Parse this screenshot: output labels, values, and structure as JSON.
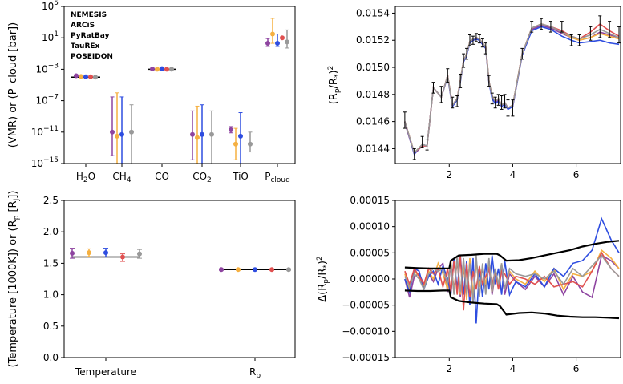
{
  "colors": {
    "NEMESIS": "#8e44a0",
    "ARCiS": "#f5b041",
    "PyRatBay": "#2e4de0",
    "TauREx": "#e05050",
    "POSEIDON": "#999999",
    "noise": "#000000"
  },
  "chart_data": [
    {
      "panel": "top-left",
      "type": "scatter",
      "ylabel": "(VMR) or (P_cloud [bar])",
      "yscale": "log",
      "ylim": [
        1e-15,
        100000.0
      ],
      "yticks": [
        "10^-15",
        "10^-11",
        "10^-7",
        "10^-3",
        "10^1",
        "10^5"
      ],
      "categories": [
        "H2O",
        "CH4",
        "CO",
        "CO2",
        "TiO",
        "Pcloud"
      ],
      "legend": {
        "position": "top-left",
        "entries": [
          "NEMESIS",
          "ARCiS",
          "PyRatBay",
          "TauREx",
          "POSEIDON"
        ]
      },
      "truth": [
        0.0001,
        null,
        0.001,
        null,
        null,
        null
      ],
      "series": [
        {
          "name": "NEMESIS",
          "points": [
            [
              0.00015,
              0.00012,
              0.00018
            ],
            [
              1e-11,
              1e-14,
              3e-07
            ],
            [
              0.0011,
              0.0008,
              0.0015
            ],
            [
              5e-12,
              3e-15,
              5e-09
            ],
            [
              2e-11,
              8e-12,
              5e-11
            ],
            [
              2,
              0.8,
              8
            ]
          ]
        },
        {
          "name": "ARCiS",
          "points": [
            [
              0.00012,
              0.0001,
              0.00015
            ],
            [
              3e-12,
              1e-15,
              1e-06
            ],
            [
              0.001,
              0.0007,
              0.0014
            ],
            [
              2e-12,
              1e-15,
              2e-08
            ],
            [
              3e-13,
              3e-15,
              3e-11
            ],
            [
              30,
              2,
              3000
            ]
          ]
        },
        {
          "name": "PyRatBay",
          "points": [
            [
              0.00011,
              9e-05,
              0.00014
            ],
            [
              5e-12,
              1e-15,
              3e-07
            ],
            [
              0.0012,
              0.0008,
              0.0018
            ],
            [
              5e-12,
              1e-15,
              3e-08
            ],
            [
              3e-12,
              1e-15,
              3e-09
            ],
            [
              2,
              0.8,
              30
            ]
          ]
        },
        {
          "name": "TauREx",
          "points": [
            [
              0.00011,
              9e-05,
              0.00013
            ],
            [
              null,
              null,
              null
            ],
            [
              0.001,
              0.0007,
              0.0014
            ],
            [
              null,
              null,
              null
            ],
            [
              null,
              null,
              null
            ],
            [
              10,
              10,
              10
            ]
          ]
        },
        {
          "name": "POSEIDON",
          "points": [
            [
              0.0001,
              9e-05,
              0.00013
            ],
            [
              1e-11,
              1e-15,
              3e-08
            ],
            [
              0.001,
              0.0008,
              0.0015
            ],
            [
              5e-12,
              1e-15,
              5e-09
            ],
            [
              3e-13,
              3e-14,
              1e-11
            ],
            [
              3,
              0.5,
              100
            ]
          ]
        }
      ]
    },
    {
      "panel": "top-right",
      "type": "line",
      "ylabel": "(R_p/R_*)^2",
      "xlim": [
        0.3,
        7.4
      ],
      "ylim": [
        0.01429,
        0.01545
      ],
      "xticks": [
        2,
        4,
        6
      ],
      "yticks": [
        0.0144,
        0.0146,
        0.0148,
        0.015,
        0.0152,
        0.0154
      ],
      "x": [
        0.6,
        0.9,
        1.15,
        1.3,
        1.5,
        1.75,
        1.95,
        2.1,
        2.25,
        2.35,
        2.45,
        2.55,
        2.65,
        2.75,
        2.85,
        2.95,
        3.05,
        3.15,
        3.25,
        3.35,
        3.45,
        3.55,
        3.65,
        3.75,
        3.85,
        4.0,
        4.3,
        4.6,
        4.9,
        5.2,
        5.55,
        5.85,
        6.1,
        6.45,
        6.75,
        7.05,
        7.35
      ],
      "observed": [
        0.01461,
        0.01436,
        0.01445,
        0.01443,
        0.01485,
        0.0148,
        0.01494,
        0.01474,
        0.01475,
        0.0149,
        0.01505,
        0.0151,
        0.0152,
        0.0152,
        0.01522,
        0.01521,
        0.01518,
        0.01514,
        0.0149,
        0.01477,
        0.01474,
        0.01476,
        0.01474,
        0.01475,
        0.0147,
        0.0147,
        0.0151,
        0.0153,
        0.01532,
        0.0153,
        0.0153,
        0.0152,
        0.0152,
        0.01525,
        0.0153,
        0.01528,
        0.01524
      ],
      "errors": [
        6e-05,
        4e-05,
        4e-05,
        4e-05,
        4e-05,
        6e-05,
        5e-05,
        4e-05,
        4e-05,
        5e-05,
        5e-05,
        4e-05,
        4e-05,
        3e-05,
        3e-05,
        3e-05,
        3e-05,
        4e-05,
        4e-05,
        4e-05,
        4e-05,
        4e-05,
        5e-05,
        5e-05,
        6e-05,
        6e-05,
        4e-05,
        4e-05,
        4e-05,
        4e-05,
        4e-05,
        4e-05,
        4e-05,
        5e-05,
        8e-05,
        6e-05,
        6e-05
      ],
      "series": [
        {
          "name": "NEMESIS",
          "values": [
            0.01459,
            0.01436,
            0.01442,
            0.01442,
            0.01485,
            0.01478,
            0.01494,
            0.01472,
            0.01477,
            0.0149,
            0.01505,
            0.0151,
            0.01518,
            0.0152,
            0.01521,
            0.0152,
            0.01517,
            0.01514,
            0.0149,
            0.01478,
            0.01474,
            0.01476,
            0.01472,
            0.01474,
            0.0147,
            0.01471,
            0.0151,
            0.01528,
            0.01531,
            0.01529,
            0.01525,
            0.01522,
            0.0152,
            0.01522,
            0.01526,
            0.01524,
            0.01522
          ]
        },
        {
          "name": "ARCiS",
          "values": [
            0.0146,
            0.01437,
            0.01443,
            0.01442,
            0.01485,
            0.01478,
            0.01494,
            0.01472,
            0.01477,
            0.0149,
            0.01505,
            0.0151,
            0.01519,
            0.01521,
            0.01522,
            0.01521,
            0.01518,
            0.01515,
            0.0149,
            0.01479,
            0.01475,
            0.01477,
            0.01472,
            0.01474,
            0.0147,
            0.01472,
            0.0151,
            0.01529,
            0.01532,
            0.0153,
            0.01526,
            0.01522,
            0.0152,
            0.01522,
            0.01525,
            0.01523,
            0.01521
          ]
        },
        {
          "name": "PyRatBay",
          "values": [
            0.0146,
            0.01436,
            0.01443,
            0.01442,
            0.01485,
            0.01478,
            0.01493,
            0.01471,
            0.01476,
            0.01489,
            0.01504,
            0.01509,
            0.01518,
            0.0152,
            0.01521,
            0.0152,
            0.01517,
            0.01514,
            0.01489,
            0.01477,
            0.01473,
            0.01475,
            0.01471,
            0.01473,
            0.01469,
            0.01471,
            0.01509,
            0.01527,
            0.0153,
            0.01528,
            0.01523,
            0.0152,
            0.01518,
            0.01519,
            0.0152,
            0.01518,
            0.01517
          ]
        },
        {
          "name": "TauREx",
          "values": [
            0.0146,
            0.01437,
            0.01442,
            0.01442,
            0.01485,
            0.01478,
            0.01494,
            0.01472,
            0.01477,
            0.0149,
            0.01505,
            0.0151,
            0.01519,
            0.01521,
            0.01522,
            0.01521,
            0.01518,
            0.01515,
            0.0149,
            0.01479,
            0.01475,
            0.01477,
            0.01472,
            0.01474,
            0.0147,
            0.01472,
            0.0151,
            0.01529,
            0.01532,
            0.0153,
            0.01527,
            0.01523,
            0.01521,
            0.01526,
            0.01532,
            0.01527,
            0.01523
          ]
        },
        {
          "name": "POSEIDON",
          "values": [
            0.0146,
            0.01437,
            0.01443,
            0.01442,
            0.01485,
            0.01478,
            0.01494,
            0.01472,
            0.01477,
            0.0149,
            0.01505,
            0.0151,
            0.01519,
            0.01521,
            0.01522,
            0.01521,
            0.01518,
            0.01515,
            0.0149,
            0.01479,
            0.01475,
            0.01477,
            0.01472,
            0.01474,
            0.0147,
            0.01472,
            0.0151,
            0.01529,
            0.01532,
            0.0153,
            0.01526,
            0.01523,
            0.01521,
            0.01524,
            0.01528,
            0.01525,
            0.01522
          ]
        }
      ]
    },
    {
      "panel": "bottom-left",
      "type": "scatter",
      "ylabel": "(Temperature [1000K]) or (R_p [R_J])",
      "ylim": [
        0.0,
        2.5
      ],
      "yticks": [
        0.0,
        0.5,
        1.0,
        1.5,
        2.0,
        2.5
      ],
      "categories": [
        "Temperature",
        "Rp"
      ],
      "truth": [
        1.6,
        1.4
      ],
      "series": [
        {
          "name": "NEMESIS",
          "points": [
            [
              1.66,
              1.58,
              1.74
            ],
            [
              1.4,
              1.39,
              1.41
            ]
          ]
        },
        {
          "name": "ARCiS",
          "points": [
            [
              1.67,
              1.61,
              1.73
            ],
            [
              1.4,
              1.39,
              1.41
            ]
          ]
        },
        {
          "name": "PyRatBay",
          "points": [
            [
              1.67,
              1.6,
              1.74
            ],
            [
              1.4,
              1.39,
              1.41
            ]
          ]
        },
        {
          "name": "TauREx",
          "points": [
            [
              1.6,
              1.53,
              1.65
            ],
            [
              1.4,
              1.39,
              1.41
            ]
          ]
        },
        {
          "name": "POSEIDON",
          "points": [
            [
              1.65,
              1.58,
              1.72
            ],
            [
              1.4,
              1.39,
              1.41
            ]
          ]
        }
      ]
    },
    {
      "panel": "bottom-right",
      "type": "line",
      "ylabel": "Δ(R_p/R_*)^2",
      "xlim": [
        0.3,
        7.4
      ],
      "ylim": [
        -0.00015,
        0.00015
      ],
      "xticks": [
        2,
        4,
        6
      ],
      "yticks": [
        "−0.00015",
        "−0.00010",
        "−0.00005",
        "0.00000",
        "0.00005",
        "0.00010",
        "0.00015"
      ],
      "envelope_x": [
        0.6,
        1.0,
        1.4,
        1.8,
        2.0,
        2.05,
        2.3,
        2.7,
        3.1,
        3.5,
        3.6,
        3.8,
        4.2,
        4.6,
        5.0,
        5.4,
        5.8,
        6.2,
        6.6,
        7.0,
        7.35
      ],
      "envelope_upper": [
        2.2e-05,
        2.1e-05,
        2e-05,
        2e-05,
        2e-05,
        3.5e-05,
        4.5e-05,
        4.6e-05,
        4.8e-05,
        4.8e-05,
        4.5e-05,
        3.5e-05,
        3.6e-05,
        4e-05,
        4.5e-05,
        5e-05,
        5.5e-05,
        6.2e-05,
        6.7e-05,
        7.1e-05,
        7.3e-05
      ],
      "envelope_lower": [
        -2.2e-05,
        -2.3e-05,
        -2.3e-05,
        -2.2e-05,
        -2.2e-05,
        -3.5e-05,
        -4.2e-05,
        -4.5e-05,
        -4.7e-05,
        -4.8e-05,
        -5.2e-05,
        -6.8e-05,
        -6.5e-05,
        -6.4e-05,
        -6.6e-05,
        -7e-05,
        -7.2e-05,
        -7.3e-05,
        -7.3e-05,
        -7.4e-05,
        -7.5e-05
      ],
      "x": [
        0.6,
        0.75,
        0.9,
        1.05,
        1.2,
        1.35,
        1.5,
        1.65,
        1.8,
        1.95,
        2.05,
        2.15,
        2.25,
        2.35,
        2.45,
        2.55,
        2.65,
        2.75,
        2.85,
        2.95,
        3.05,
        3.15,
        3.25,
        3.35,
        3.45,
        3.55,
        3.65,
        3.75,
        3.9,
        4.1,
        4.4,
        4.7,
        5.0,
        5.3,
        5.6,
        5.9,
        6.2,
        6.5,
        6.8,
        7.1,
        7.35
      ],
      "series": [
        {
          "name": "NEMESIS",
          "values": [
            0.0,
            -3.5e-05,
            5e-06,
            1e-05,
            -1e-05,
            1e-05,
            -5e-06,
            2e-05,
            3e-05,
            -2.5e-05,
            3e-05,
            -2e-05,
            3.5e-05,
            -3.5e-05,
            2e-05,
            -2.5e-05,
            3e-05,
            -4.5e-05,
            3.5e-05,
            -1e-05,
            2e-05,
            -2e-05,
            2.5e-05,
            -3e-05,
            1e-05,
            -1.5e-05,
            2e-05,
            -3e-05,
            1e-05,
            -5e-06,
            -2e-05,
            5e-06,
            -1.5e-05,
            1e-05,
            -3e-05,
            5e-06,
            -2.5e-05,
            -3.5e-05,
            4.5e-05,
            3.5e-05,
            2e-05
          ]
        },
        {
          "name": "ARCiS",
          "values": [
            1e-05,
            -2e-05,
            1.5e-05,
            5e-06,
            -1.5e-05,
            1.5e-05,
            0.0,
            3e-05,
            1e-05,
            -2e-05,
            3.5e-05,
            -2.5e-05,
            4e-05,
            -3e-05,
            3e-05,
            -4e-05,
            4e-05,
            -3e-05,
            3e-05,
            -1.5e-05,
            2.5e-05,
            -1e-05,
            3e-05,
            -2.5e-05,
            1.5e-05,
            -1e-05,
            3e-05,
            -2e-05,
            1.5e-05,
            0.0,
            -1e-05,
            1.5e-05,
            -5e-06,
            2e-05,
            -2e-05,
            1e-05,
            5e-06,
            1.5e-05,
            5.5e-05,
            4e-05,
            2e-05
          ]
        },
        {
          "name": "PyRatBay",
          "values": [
            0.0,
            -2.5e-05,
            2e-05,
            1.5e-05,
            -2e-05,
            5e-06,
            1.5e-05,
            -1e-05,
            2.5e-05,
            0.0,
            -3e-05,
            4e-05,
            -2e-05,
            4.5e-05,
            -3e-05,
            3.5e-05,
            -5e-05,
            4e-05,
            -8.5e-05,
            2e-05,
            -3.5e-05,
            3e-05,
            -2e-05,
            4.5e-05,
            -1e-05,
            2e-05,
            -3e-05,
            3.5e-05,
            -3e-05,
            -5e-06,
            -1.5e-05,
            1e-05,
            -1.5e-05,
            2e-05,
            5e-06,
            3e-05,
            3.5e-05,
            5.5e-05,
            0.000115,
            7.5e-05,
            5e-05
          ]
        },
        {
          "name": "TauREx",
          "values": [
            1.5e-05,
            -1e-05,
            2e-05,
            5e-06,
            -1e-05,
            2e-05,
            1e-05,
            2e-05,
            -1.5e-05,
            2e-05,
            -2.5e-05,
            3.5e-05,
            -3e-05,
            4.5e-05,
            -6e-05,
            3e-05,
            -3.5e-05,
            1.5e-05,
            -2e-05,
            2.5e-05,
            -1e-05,
            5e-06,
            2e-05,
            -1e-05,
            1.5e-05,
            -2e-05,
            1.5e-05,
            1e-05,
            -1e-05,
            5e-06,
            0.0,
            -1e-05,
            5e-06,
            -1.5e-05,
            -1e-05,
            -5e-06,
            -1.5e-05,
            1.5e-05,
            5e-05,
            2e-05,
            5e-06
          ]
        },
        {
          "name": "POSEIDON",
          "values": [
            5e-06,
            -1.5e-05,
            1e-05,
            0.0,
            -2e-05,
            1e-05,
            2e-05,
            1.5e-05,
            2e-05,
            -1e-05,
            3e-05,
            -3e-05,
            4.5e-05,
            -2.5e-05,
            4e-05,
            -3e-05,
            3e-05,
            -4.5e-05,
            4.5e-05,
            -3.5e-05,
            3e-05,
            -3e-05,
            4e-05,
            -2.5e-05,
            2e-05,
            -1e-05,
            3e-05,
            -2e-05,
            2e-05,
            1e-05,
            5e-06,
            1e-05,
            0.0,
            1.5e-05,
            -1e-05,
            2e-05,
            5e-06,
            2.5e-05,
            4.5e-05,
            2e-05,
            5e-06
          ]
        }
      ]
    }
  ]
}
